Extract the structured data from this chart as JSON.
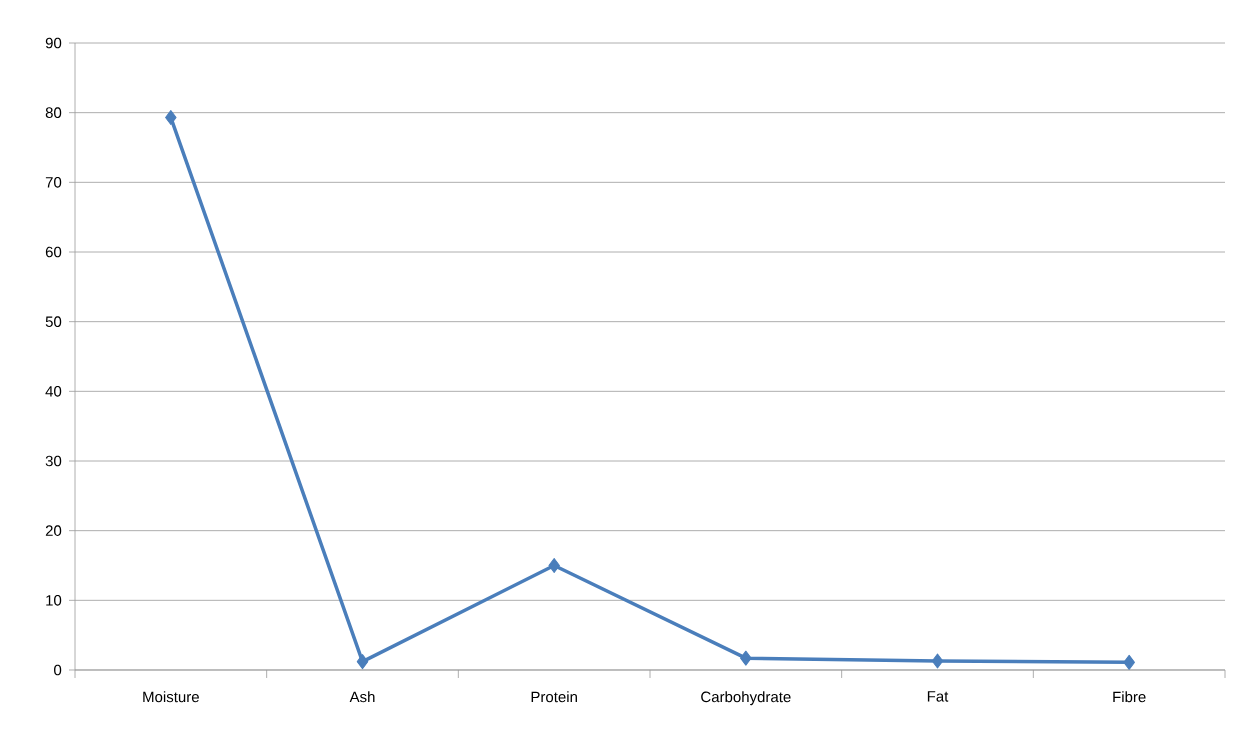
{
  "chart_data": {
    "type": "line",
    "categories": [
      "Moisture",
      "Ash",
      "Protein",
      "Carbohydrate",
      "Fat",
      "Fibre"
    ],
    "series": [
      {
        "color": "#4a7ebb",
        "values": [
          79.3,
          1.2,
          15.0,
          1.7,
          1.3,
          1.1
        ]
      }
    ],
    "ylim": [
      0,
      90
    ],
    "yticks": [
      0,
      10,
      20,
      30,
      40,
      50,
      60,
      70,
      80,
      90
    ],
    "grid": "y",
    "marker": "diamond",
    "line_style": "solid"
  }
}
